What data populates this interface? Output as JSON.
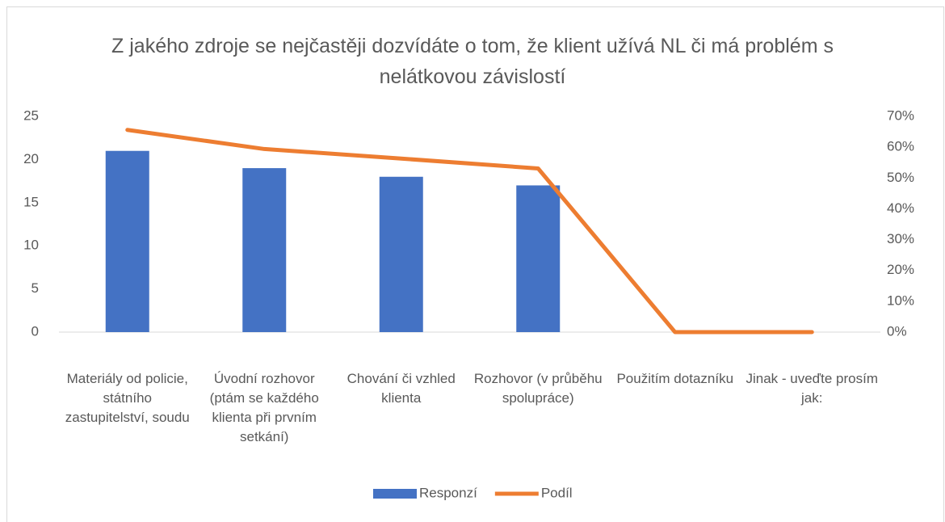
{
  "chart_data": {
    "type": "bar",
    "title": "Z jakého zdroje se nejčastěji dozvídáte o tom, že klient užívá NL či má problém s nelátkovou závislostí",
    "categories": [
      "Materiály od policie, státního zastupitelství, soudu",
      "Úvodní rozhovor (ptám se každého klienta při prvním setkání)",
      "Chování či vzhled klienta",
      "Rozhovor (v průběhu spolupráce)",
      "Použitím dotazníku",
      "Jinak - uveďte prosím jak:"
    ],
    "series": [
      {
        "name": "Responzí",
        "type": "bar",
        "color": "#4472c4",
        "values": [
          21,
          19,
          18,
          17,
          0,
          0
        ]
      },
      {
        "name": "Podíl",
        "type": "line",
        "color": "#ed7d31",
        "axis": "y2",
        "values": [
          65.6,
          59.4,
          56.3,
          53.1,
          0,
          0
        ]
      }
    ],
    "ylim": [
      0,
      25
    ],
    "yticks": [
      0,
      5,
      10,
      15,
      20,
      25
    ],
    "y2lim": [
      0,
      70
    ],
    "y2ticks": [
      {
        "value": 0,
        "label": "0%"
      },
      {
        "value": 10,
        "label": "10%"
      },
      {
        "value": 20,
        "label": "20%"
      },
      {
        "value": 30,
        "label": "30%"
      },
      {
        "value": 40,
        "label": "40%"
      },
      {
        "value": 50,
        "label": "50%"
      },
      {
        "value": 60,
        "label": "60%"
      },
      {
        "value": 70,
        "label": "70%"
      }
    ],
    "grid": false,
    "legend": "bottom"
  }
}
